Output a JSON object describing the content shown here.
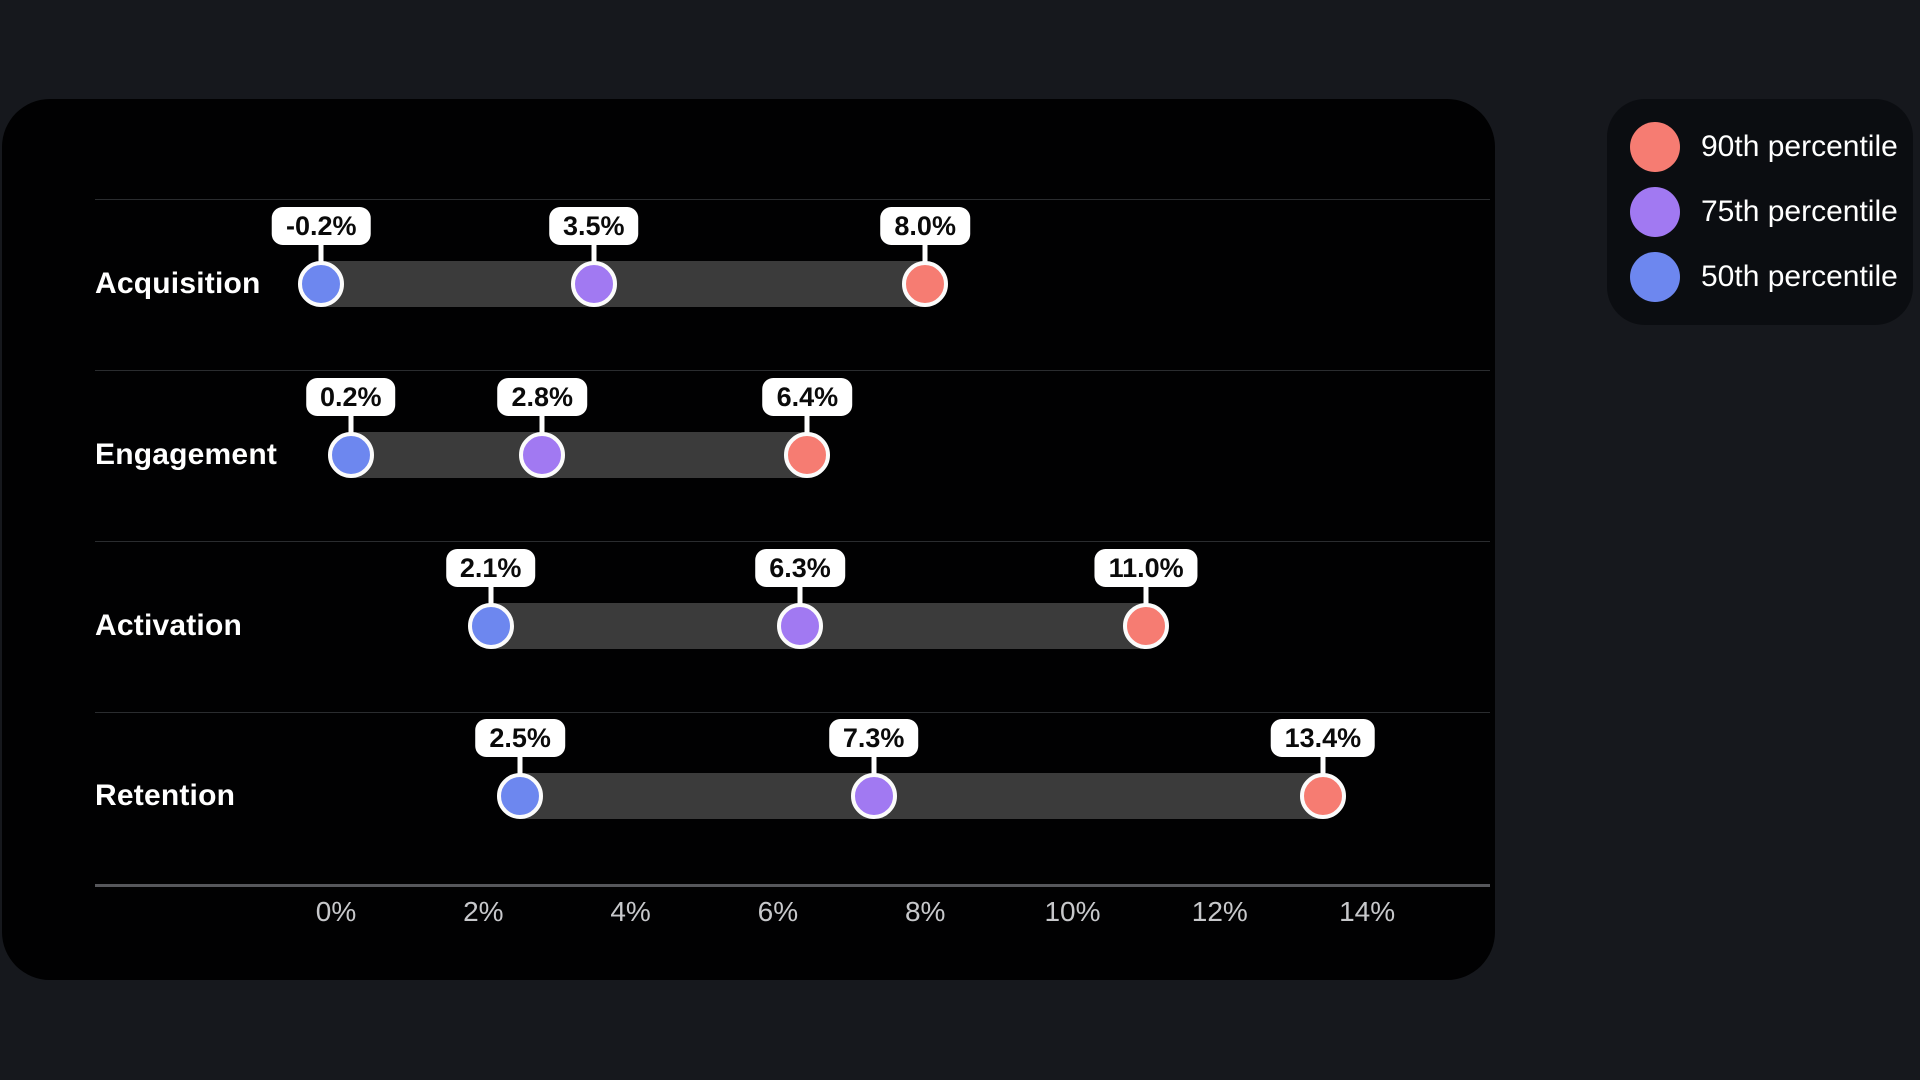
{
  "page": {
    "background": "#16181D",
    "card_background": "#010102",
    "legend_background": "#0B0D11"
  },
  "chart_data": {
    "type": "dumbbell",
    "categories": [
      "Acquisition",
      "Engagement",
      "Activation",
      "Retention"
    ],
    "series": [
      {
        "name": "50th percentile",
        "color": "#6D87EF",
        "values": [
          -0.2,
          0.2,
          2.1,
          2.5
        ]
      },
      {
        "name": "75th percentile",
        "color": "#A179F2",
        "values": [
          3.5,
          2.8,
          6.3,
          7.3
        ]
      },
      {
        "name": "90th percentile",
        "color": "#F67C72",
        "values": [
          8.0,
          6.4,
          11.0,
          13.4
        ]
      }
    ],
    "value_labels": [
      [
        "-0.2%",
        "3.5%",
        "8.0%"
      ],
      [
        "0.2%",
        "2.8%",
        "6.4%"
      ],
      [
        "2.1%",
        "6.3%",
        "11.0%"
      ],
      [
        "2.5%",
        "7.3%",
        "13.4%"
      ]
    ],
    "x_ticks": {
      "values": [
        0,
        2,
        4,
        6,
        8,
        10,
        12,
        14
      ],
      "labels": [
        "0%",
        "2%",
        "4%",
        "6%",
        "8%",
        "10%",
        "12%",
        "14%"
      ]
    },
    "xlim": [
      -3.2,
      15.6
    ],
    "grid": "horizontal-row-dividers",
    "legend_position": "top-right",
    "bar_color": "#3B3B3B",
    "divider_color": "#2A2C2F",
    "axis_line_color": "#56575B",
    "tick_text_color": "#C7C8CB"
  },
  "legend": {
    "items": [
      {
        "label": "90th percentile",
        "color": "#F67C72"
      },
      {
        "label": "75th percentile",
        "color": "#A179F2"
      },
      {
        "label": "50th percentile",
        "color": "#6D87EF"
      }
    ]
  }
}
